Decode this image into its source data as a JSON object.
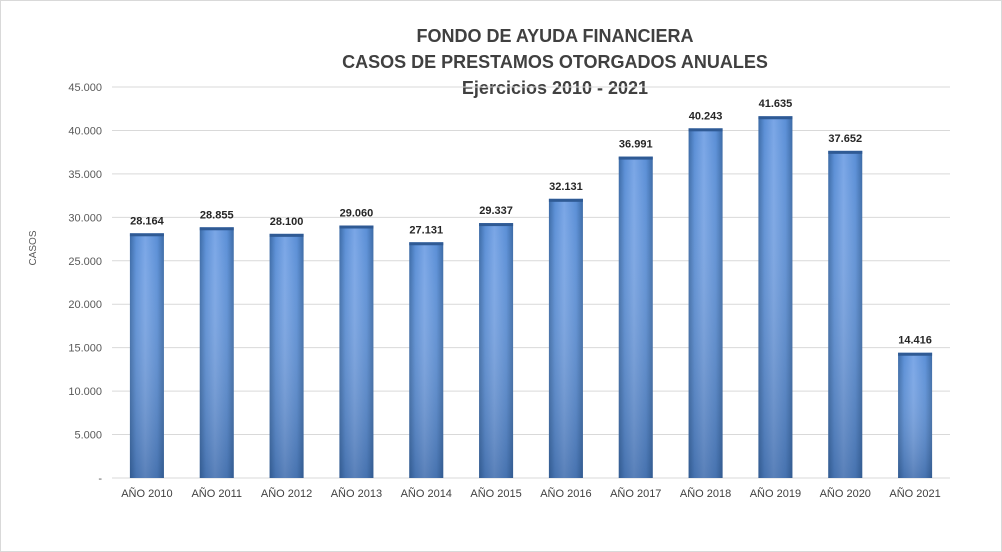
{
  "chart_data": {
    "type": "bar",
    "title": [
      "FONDO DE AYUDA FINANCIERA",
      "CASOS DE PRESTAMOS OTORGADOS ANUALES",
      "Ejercicios 2010 - 2021"
    ],
    "ylabel": "CASOS",
    "xlabel": "",
    "ylim": [
      0,
      45000
    ],
    "yticks": [
      {
        "value": 0,
        "label": "-"
      },
      {
        "value": 5000,
        "label": "5.000"
      },
      {
        "value": 10000,
        "label": "10.000"
      },
      {
        "value": 15000,
        "label": "15.000"
      },
      {
        "value": 20000,
        "label": "20.000"
      },
      {
        "value": 25000,
        "label": "25.000"
      },
      {
        "value": 30000,
        "label": "30.000"
      },
      {
        "value": 35000,
        "label": "35.000"
      },
      {
        "value": 40000,
        "label": "40.000"
      },
      {
        "value": 45000,
        "label": "45.000"
      }
    ],
    "categories": [
      "AÑO 2010",
      "AÑO 2011",
      "AÑO 2012",
      "AÑO 2013",
      "AÑO 2014",
      "AÑO 2015",
      "AÑO 2016",
      "AÑO 2017",
      "AÑO 2018",
      "AÑO 2019",
      "AÑO 2020",
      "AÑO 2021"
    ],
    "values": [
      28164,
      28855,
      28100,
      29060,
      27131,
      29337,
      32131,
      36991,
      40243,
      41635,
      37652,
      14416
    ],
    "data_labels": [
      "28.164",
      "28.855",
      "28.100",
      "29.060",
      "27.131",
      "29.337",
      "32.131",
      "36.991",
      "40.243",
      "41.635",
      "37.652",
      "14.416"
    ],
    "grid": true,
    "legend": "none",
    "colors": {
      "bar_light": "#7aa6e6",
      "bar_mid": "#4f81bd",
      "bar_dark": "#3b6aa6",
      "grid": "#d9d9d9"
    }
  }
}
